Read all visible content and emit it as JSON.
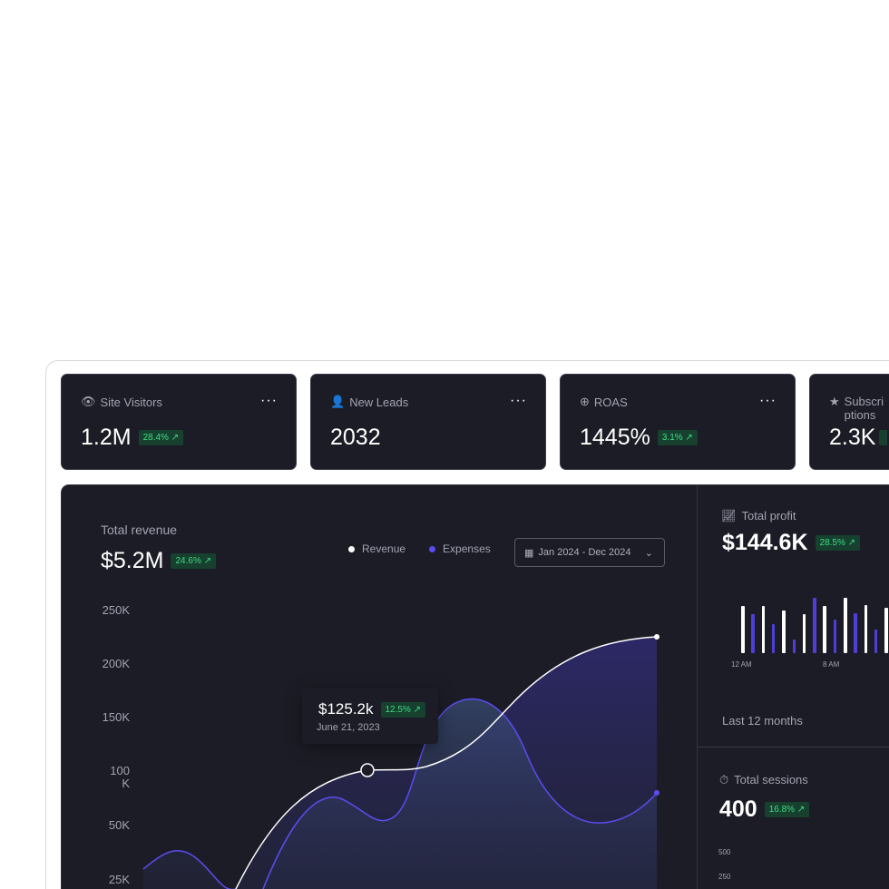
{
  "stats": [
    {
      "label": "Site Visitors",
      "value": "1.2M",
      "change": "28.4%",
      "icon": "eye-icon"
    },
    {
      "label": "New Leads",
      "value": "2032",
      "change": null,
      "icon": "user-icon"
    },
    {
      "label": "ROAS",
      "value": "1445%",
      "change": "3.1%",
      "icon": "plus-circle-icon"
    },
    {
      "label": "Subscriptions",
      "value": "2.3K",
      "change": null,
      "icon": "star-icon"
    }
  ],
  "revenue": {
    "title": "Total revenue",
    "value": "$5.2M",
    "change": "24.6%",
    "legend": [
      "Revenue",
      "Expenses"
    ],
    "date_range": "Jan 2024 - Dec 2024",
    "yticks": [
      "250K",
      "200K",
      "150K",
      "100 K",
      "50K",
      "25K"
    ],
    "tooltip": {
      "value": "$125.2k",
      "change": "12.5%",
      "date": "June 21, 2023"
    }
  },
  "profit": {
    "title": "Total profit",
    "value": "$144.6K",
    "change": "28.5%",
    "xlabels": [
      "12 AM",
      "8 AM"
    ],
    "footer": "Last 12 months",
    "bars": [
      52,
      43,
      52,
      32,
      47,
      15,
      43,
      61,
      52,
      37,
      61,
      44,
      53,
      26,
      50
    ]
  },
  "sessions": {
    "title": "Total sessions",
    "value": "400",
    "change": "16.8%",
    "yticks": [
      "500",
      "250"
    ]
  },
  "colors": {
    "accent": "#4f3fd8",
    "positive": "#3ddc84",
    "panel": "#1c1c26"
  }
}
